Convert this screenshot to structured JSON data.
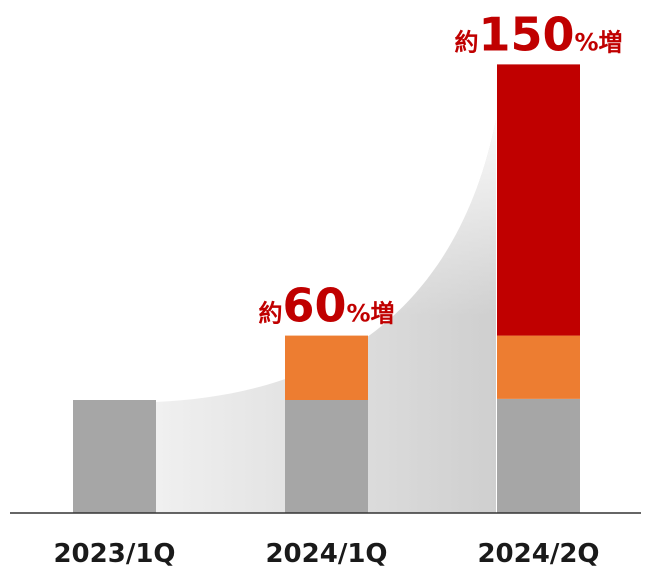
{
  "chart_data": {
    "type": "stacked-bar",
    "categories": [
      "2023/1Q",
      "2024/1Q",
      "2024/2Q"
    ],
    "series": [
      {
        "color": "#a6a6a6",
        "values": [
          100,
          100,
          101
        ]
      },
      {
        "color": "#ed7d31",
        "values": [
          null,
          57,
          56
        ]
      },
      {
        "color": "#c00000",
        "values": [
          null,
          null,
          240
        ]
      }
    ],
    "ylim": [
      0,
      400
    ],
    "annotations": [
      {
        "category": "2024/1Q",
        "text": [
          "約",
          "60",
          "%増"
        ],
        "color": "#c00000"
      },
      {
        "category": "2024/2Q",
        "text": [
          "約",
          "150",
          "%増"
        ],
        "color": "#c00000"
      }
    ]
  }
}
